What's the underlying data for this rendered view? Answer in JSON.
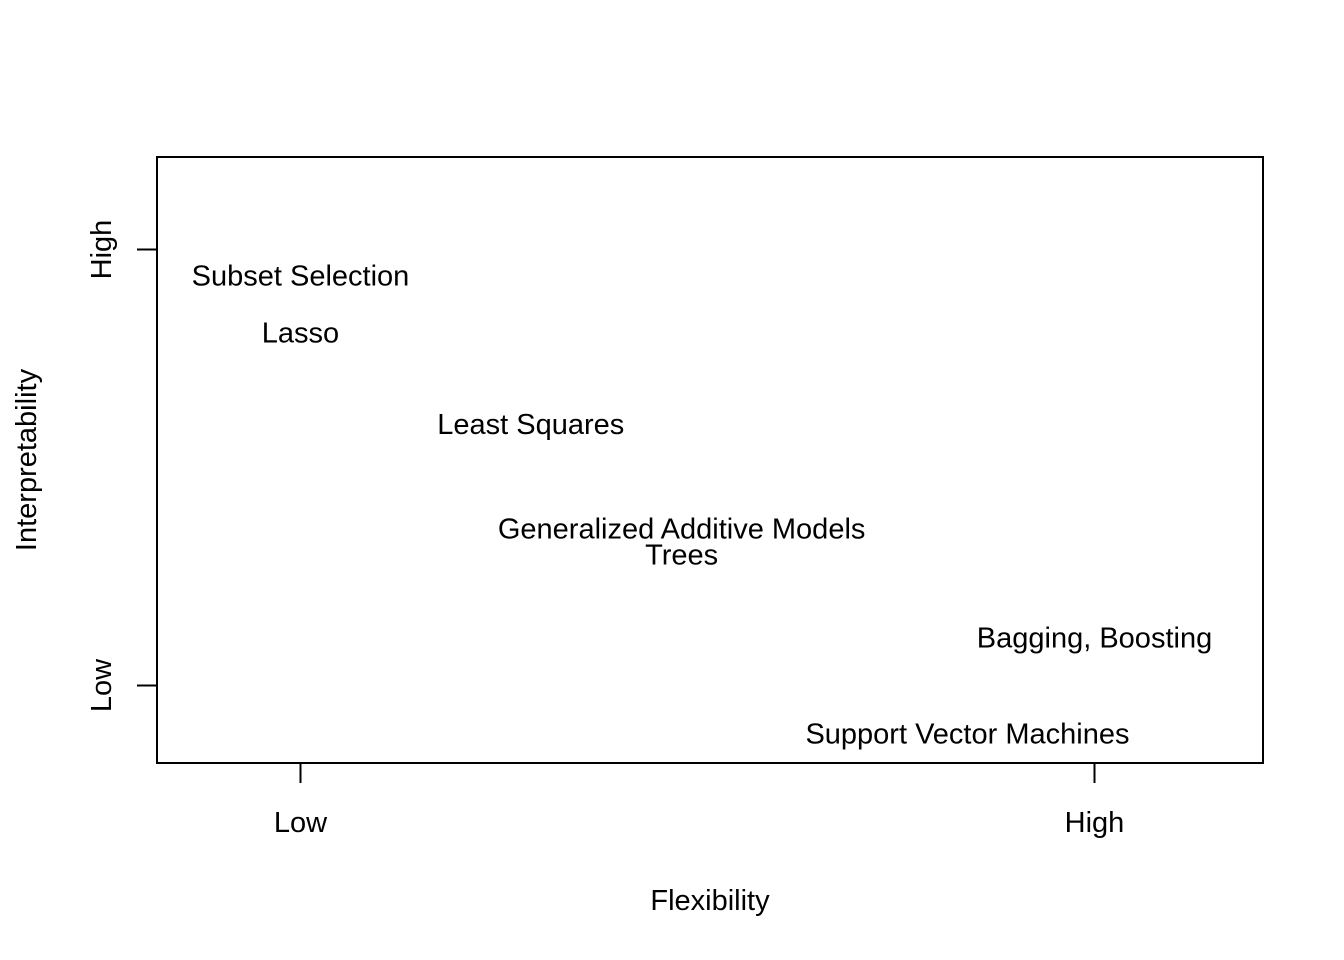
{
  "chart_data": {
    "type": "scatter",
    "title": "",
    "xlabel": "Flexibility",
    "ylabel": "Interpretability",
    "x_ticks": [
      {
        "label": "Low",
        "value": 0
      },
      {
        "label": "High",
        "value": 1
      }
    ],
    "y_ticks": [
      {
        "label": "Low",
        "value": 0
      },
      {
        "label": "High",
        "value": 1
      }
    ],
    "xlim": [
      -0.18,
      1.21
    ],
    "ylim": [
      -0.18,
      1.21
    ],
    "grid": false,
    "legend": "none",
    "points": [
      {
        "label": "Subset Selection",
        "x": 0.0,
        "y": 0.94
      },
      {
        "label": "Lasso",
        "x": 0.0,
        "y": 0.81
      },
      {
        "label": "Least Squares",
        "x": 0.29,
        "y": 0.6
      },
      {
        "label": "Generalized Additive Models",
        "x": 0.48,
        "y": 0.36
      },
      {
        "label": "Trees",
        "x": 0.48,
        "y": 0.3
      },
      {
        "label": "Bagging, Boosting",
        "x": 1.0,
        "y": 0.11
      },
      {
        "label": "Support Vector Machines",
        "x": 0.84,
        "y": -0.11
      }
    ]
  }
}
